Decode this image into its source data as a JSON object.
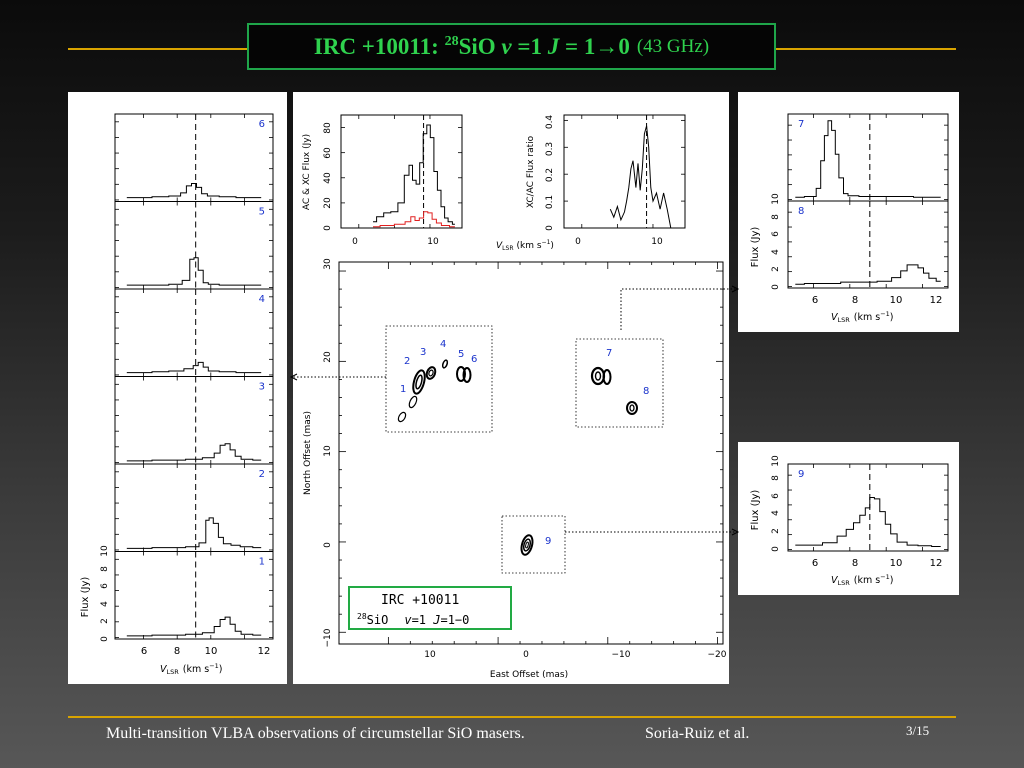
{
  "slide": {
    "title": {
      "prefix": "IRC +10011: ",
      "isotope": "28",
      "molecule": "SiO ",
      "v_var": "v",
      "v_eq": " =1 ",
      "j_var": "J",
      "j_eq": " = 1→0",
      "freq": "(43 GHz)"
    },
    "footer": {
      "title": "Multi-transition VLBA observations of circumstellar SiO masers.",
      "authors": "Soria-Ruiz et al.",
      "page": "3/15"
    },
    "colors": {
      "rule": "#d9a400",
      "title_text": "#2fd24e",
      "title_border": "#1fa64a",
      "label_blue": "#1a33cc",
      "xc_red": "#e02020",
      "box_green": "#22aa44"
    }
  },
  "left_panel": {
    "ylabel": "Flux (Jy)",
    "xlabel_v": "V",
    "xlabel_sub": "LSR",
    "xlabel_unit": "(km s",
    "xlabel_exp": "−1",
    "xlabel_close": ")",
    "xticks": [
      "6",
      "8",
      "10",
      "12"
    ],
    "yticks": [
      "0",
      "2",
      "4",
      "6",
      "8",
      "10"
    ],
    "dashed_v": 9.1
  },
  "top_right_panel": {
    "ylabel": "Flux (Jy)",
    "xlabel_v": "V",
    "xlabel_sub": "LSR",
    "xlabel_unit": "(km s",
    "xlabel_exp": "−1",
    "xlabel_close": ")",
    "xticks": [
      "6",
      "8",
      "10",
      "12"
    ],
    "yticks": [
      "0",
      "2",
      "4",
      "6",
      "8",
      "10"
    ]
  },
  "bottom_right_panel": {
    "ylabel": "Flux (Jy)",
    "xlabel_v": "V",
    "xlabel_sub": "LSR",
    "xlabel_unit": "(km s",
    "xlabel_exp": "−1",
    "xlabel_close": ")",
    "xticks": [
      "6",
      "8",
      "10",
      "12"
    ],
    "yticks": [
      "0",
      "2",
      "4",
      "6",
      "8",
      "10"
    ]
  },
  "center_panel": {
    "ac_ylabel": "AC & XC Flux (Jy)",
    "ac_yticks": [
      "0",
      "20",
      "40",
      "60",
      "80"
    ],
    "ac_xticks": [
      "0",
      "10"
    ],
    "ratio_ylabel": "XC/AC Flux ratio",
    "ratio_yticks": [
      "0",
      "0.1",
      "0.2",
      "0.3",
      "0.4"
    ],
    "ratio_xticks": [
      "0",
      "10"
    ],
    "vel_label_v": "V",
    "vel_label_sub": "LSR",
    "vel_label_unit": "(km s",
    "vel_label_exp": "−1",
    "vel_label_close": ")",
    "map_ylabel": "North Offset (mas)",
    "map_xlabel": "East Offset (mas)",
    "map_yticks": [
      "−10",
      "0",
      "10",
      "20",
      "30"
    ],
    "map_xticks": [
      "10",
      "0",
      "−10",
      "−20"
    ],
    "legend_line1": "IRC  +10011",
    "legend_iso": "28",
    "legend_mol": "SiO",
    "legend_v": "v",
    "legend_v_eq": "=1  ",
    "legend_j": "J",
    "legend_j_eq": "=1−0"
  },
  "chart_data": [
    {
      "type": "line",
      "chart_id": "spectrum-6",
      "label": "6",
      "x": [
        5.0,
        6.0,
        7.0,
        8.0,
        8.4,
        8.7,
        9.0,
        9.3,
        9.6,
        10.0,
        11.0,
        12.0,
        13.0
      ],
      "y": [
        0.3,
        0.3,
        0.4,
        0.5,
        0.9,
        1.8,
        2.1,
        1.6,
        0.8,
        0.5,
        0.4,
        0.3,
        0.3
      ]
    },
    {
      "type": "line",
      "chart_id": "spectrum-5",
      "label": "5",
      "x": [
        5.0,
        6.0,
        7.0,
        8.0,
        8.6,
        8.9,
        9.1,
        9.4,
        9.7,
        10.0,
        11.0,
        12.0,
        13.0
      ],
      "y": [
        0.3,
        0.3,
        0.3,
        0.4,
        0.9,
        3.6,
        3.8,
        2.2,
        0.6,
        0.4,
        0.3,
        0.3,
        0.3
      ]
    },
    {
      "type": "line",
      "chart_id": "spectrum-4",
      "label": "4",
      "x": [
        5.0,
        6.0,
        7.0,
        8.0,
        8.8,
        9.1,
        9.4,
        9.7,
        10.0,
        11.0,
        12.0,
        13.0
      ],
      "y": [
        0.3,
        0.3,
        0.4,
        0.5,
        0.8,
        1.2,
        1.6,
        1.0,
        0.5,
        0.4,
        0.3,
        0.3
      ]
    },
    {
      "type": "line",
      "chart_id": "spectrum-3",
      "label": "3",
      "x": [
        5.0,
        6.0,
        7.0,
        8.0,
        9.0,
        10.0,
        10.4,
        10.7,
        11.0,
        11.3,
        11.6,
        12.0,
        13.0
      ],
      "y": [
        0.2,
        0.2,
        0.3,
        0.3,
        0.4,
        0.6,
        1.2,
        2.2,
        2.4,
        1.6,
        0.8,
        0.4,
        0.3
      ]
    },
    {
      "type": "line",
      "chart_id": "spectrum-2",
      "label": "2",
      "x": [
        5.0,
        6.0,
        7.0,
        8.0,
        9.0,
        9.6,
        9.8,
        10.0,
        10.3,
        10.6,
        10.9,
        11.5,
        12.0,
        13.0
      ],
      "y": [
        0.2,
        0.2,
        0.3,
        0.3,
        0.4,
        0.9,
        3.8,
        4.1,
        3.4,
        1.6,
        0.8,
        0.6,
        0.4,
        0.3
      ]
    },
    {
      "type": "line",
      "chart_id": "spectrum-1",
      "label": "1",
      "x": [
        5.0,
        6.0,
        7.0,
        8.0,
        9.0,
        10.0,
        10.4,
        10.7,
        11.0,
        11.3,
        11.6,
        12.0,
        13.0
      ],
      "y": [
        0.2,
        0.2,
        0.3,
        0.3,
        0.4,
        0.6,
        1.4,
        2.3,
        2.6,
        1.7,
        0.8,
        0.4,
        0.3
      ]
    },
    {
      "type": "line",
      "chart_id": "spectrum-7",
      "label": "7",
      "x": [
        5.0,
        6.0,
        6.3,
        6.5,
        6.7,
        6.9,
        7.1,
        7.3,
        7.5,
        7.8,
        8.0,
        9.0,
        10.0,
        11.0,
        12.0,
        13.0
      ],
      "y": [
        0.3,
        0.4,
        1.5,
        5.2,
        8.6,
        10.6,
        9.3,
        6.1,
        2.9,
        0.8,
        0.5,
        0.4,
        0.4,
        0.4,
        0.3,
        0.3
      ]
    },
    {
      "type": "line",
      "chart_id": "spectrum-8",
      "label": "8",
      "x": [
        5.0,
        6.0,
        7.0,
        8.0,
        9.0,
        10.0,
        10.6,
        11.0,
        11.3,
        11.6,
        11.9,
        12.2,
        12.5,
        13.0
      ],
      "y": [
        0.3,
        0.4,
        0.4,
        0.6,
        0.6,
        0.7,
        1.2,
        2.1,
        2.9,
        2.9,
        2.5,
        1.8,
        1.1,
        0.7
      ]
    },
    {
      "type": "line",
      "chart_id": "spectrum-9",
      "label": "9",
      "x": [
        5.0,
        6.0,
        7.0,
        7.6,
        8.0,
        8.4,
        8.7,
        9.0,
        9.2,
        9.5,
        9.8,
        10.1,
        10.4,
        10.8,
        11.5,
        12.0,
        13.0
      ],
      "y": [
        0.6,
        0.6,
        0.9,
        1.8,
        2.7,
        3.6,
        4.6,
        5.6,
        7.0,
        6.8,
        5.1,
        3.4,
        2.1,
        1.0,
        0.6,
        0.5,
        0.4
      ]
    },
    {
      "type": "line",
      "chart_id": "ac-xc-flux",
      "ylabel": "AC & XC Flux (Jy)",
      "xlim": [
        -2.5,
        14.5
      ],
      "ylim": [
        0,
        90
      ],
      "series": [
        {
          "x": [
            2.0,
            3.0,
            4.0,
            5.0,
            6.0,
            6.8,
            7.3,
            7.8,
            8.3,
            8.8,
            9.3,
            9.8,
            10.3,
            10.8,
            11.3,
            11.8,
            12.3,
            12.8,
            13.5
          ],
          "y": [
            5,
            9,
            12,
            13,
            20,
            42,
            50,
            38,
            35,
            52,
            75,
            82,
            72,
            45,
            30,
            17,
            8,
            5,
            3
          ]
        },
        {
          "x": [
            2.0,
            4.0,
            6.0,
            7.0,
            7.6,
            8.2,
            8.8,
            9.4,
            10.0,
            10.6,
            11.2,
            12.0,
            13.5
          ],
          "y": [
            1,
            2,
            3,
            5,
            9,
            6,
            8,
            13,
            12,
            7,
            4,
            2,
            1
          ]
        }
      ]
    },
    {
      "type": "line",
      "chart_id": "xc-ac-ratio",
      "ylabel": "XC/AC Flux ratio",
      "xlim": [
        -2.5,
        14.5
      ],
      "ylim": [
        0,
        0.42
      ],
      "x": [
        4.0,
        4.5,
        5.0,
        5.5,
        6.0,
        6.3,
        6.6,
        6.9,
        7.2,
        7.6,
        7.9,
        8.2,
        8.5,
        8.8,
        9.1,
        9.4,
        9.7,
        10.0,
        10.5,
        11.0,
        11.5,
        12.0,
        12.5
      ],
      "y": [
        0.07,
        0.04,
        0.08,
        0.03,
        0.06,
        0.1,
        0.15,
        0.22,
        0.25,
        0.15,
        0.24,
        0.14,
        0.22,
        0.35,
        0.38,
        0.3,
        0.15,
        0.1,
        0.13,
        0.07,
        0.13,
        0.07,
        0.0
      ]
    }
  ]
}
